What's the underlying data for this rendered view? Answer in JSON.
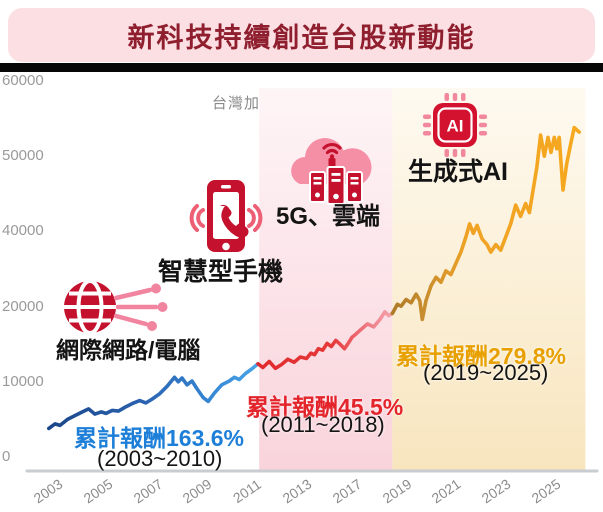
{
  "banner": {
    "title": "新科技持續創造台股新動能",
    "bg_color": "#FBDFE3",
    "title_color": "#8F1F2E"
  },
  "icons": {
    "internet": "globe-circuit-icon",
    "smartphone": "phone-vibrate-icon",
    "cloud": "cloud-servers-5g-icon",
    "ai": "ai-chip-icon"
  },
  "chart_data": {
    "type": "line",
    "title": "台灣加權總報酬指數走勢",
    "legend_position": "none",
    "grid": false,
    "annotations": {
      "internet": {
        "label": "網際網路/電腦"
      },
      "smartphone": {
        "label": "智慧型手機"
      },
      "cloud_5g": {
        "label": "5G、雲端"
      },
      "gen_ai": {
        "label": "生成式AI"
      }
    },
    "returns": [
      {
        "text": "累計報酬163.6%",
        "period": "(2003~2010)",
        "color": "#1E7FD8"
      },
      {
        "text": "累計報酬45.5%",
        "period": "(2011~2018)",
        "color": "#E3242B"
      },
      {
        "text": "累計報酬279.8%",
        "period": "(2019~2025)",
        "color": "#E8A000"
      }
    ],
    "axis": {
      "x_tick_years": [
        2003,
        2005,
        2007,
        2009,
        2011,
        2013,
        2017,
        2019,
        2021,
        2023,
        2025
      ],
      "x_tick_labels": [
        "2003",
        "2005",
        "2007",
        "2009",
        "2011",
        "2013",
        "2017",
        "2019",
        "2021",
        "2023",
        "2025"
      ],
      "x_origin": 60,
      "x_step": 49.8,
      "y_tick_values": [
        0,
        10000,
        20000,
        40000,
        50000,
        60000
      ],
      "y_tick_labels": [
        "0",
        "10000",
        "20000",
        "40000",
        "50000",
        "60000"
      ],
      "y_origin": 457,
      "y_step": 75.2
    },
    "bands": [
      {
        "name": "era-smartphone",
        "start": 2011,
        "end": 2018.35,
        "color_top": "#FEF5F7",
        "color_bottom": "#F9D3DB"
      },
      {
        "name": "era-generative-ai",
        "start": 2018.35,
        "end": 2026.1,
        "color_top": "#FEFAF1",
        "color_bottom": "#F8E5BE"
      }
    ],
    "series": [
      {
        "name": "internet-computer-era",
        "color_start": "#1B4689",
        "color_end": "#4AA5E8",
        "points": [
          [
            2002.55,
            3800
          ],
          [
            2002.8,
            4400
          ],
          [
            2003.0,
            4200
          ],
          [
            2003.3,
            5000
          ],
          [
            2003.6,
            5500
          ],
          [
            2003.9,
            6000
          ],
          [
            2004.15,
            6400
          ],
          [
            2004.4,
            5700
          ],
          [
            2004.65,
            6000
          ],
          [
            2004.85,
            5800
          ],
          [
            2005.1,
            6200
          ],
          [
            2005.35,
            6100
          ],
          [
            2005.6,
            6600
          ],
          [
            2005.9,
            7100
          ],
          [
            2006.2,
            7500
          ],
          [
            2006.45,
            7200
          ],
          [
            2006.7,
            7700
          ],
          [
            2007.0,
            8400
          ],
          [
            2007.3,
            9400
          ],
          [
            2007.6,
            10600
          ],
          [
            2007.75,
            10000
          ],
          [
            2007.9,
            10500
          ],
          [
            2008.1,
            9600
          ],
          [
            2008.3,
            10100
          ],
          [
            2008.5,
            9100
          ],
          [
            2008.75,
            7900
          ],
          [
            2008.95,
            7400
          ],
          [
            2009.2,
            8500
          ],
          [
            2009.5,
            9600
          ],
          [
            2009.8,
            10100
          ],
          [
            2010.0,
            10600
          ],
          [
            2010.2,
            10300
          ],
          [
            2010.45,
            11100
          ],
          [
            2010.7,
            11700
          ],
          [
            2010.95,
            12400
          ]
        ]
      },
      {
        "name": "smartphone-era",
        "color_start": "#E02A2E",
        "color_end": "#F5A3AC",
        "points": [
          [
            2010.95,
            12400
          ],
          [
            2011.15,
            11900
          ],
          [
            2011.4,
            12700
          ],
          [
            2011.65,
            11800
          ],
          [
            2011.9,
            12300
          ],
          [
            2012.15,
            13000
          ],
          [
            2012.4,
            12600
          ],
          [
            2012.65,
            13300
          ],
          [
            2012.9,
            13100
          ],
          [
            2013.15,
            13800
          ],
          [
            2013.45,
            13600
          ],
          [
            2013.75,
            14400
          ],
          [
            2014.1,
            14200
          ],
          [
            2014.45,
            15100
          ],
          [
            2014.8,
            14700
          ],
          [
            2015.15,
            15500
          ],
          [
            2015.5,
            15000
          ],
          [
            2015.85,
            14400
          ],
          [
            2016.15,
            15100
          ],
          [
            2016.45,
            15900
          ],
          [
            2016.8,
            16400
          ],
          [
            2017.1,
            17000
          ],
          [
            2017.35,
            17700
          ],
          [
            2017.6,
            17300
          ],
          [
            2017.85,
            18300
          ],
          [
            2018.05,
            19300
          ],
          [
            2018.2,
            18800
          ],
          [
            2018.35,
            19100
          ]
        ]
      },
      {
        "name": "generative-ai-era",
        "color_start": "#AE7A28",
        "color_end": "#F6A81E",
        "points": [
          [
            2018.35,
            19100
          ],
          [
            2018.55,
            20600
          ],
          [
            2018.7,
            20100
          ],
          [
            2018.9,
            21900
          ],
          [
            2019.1,
            21000
          ],
          [
            2019.3,
            23300
          ],
          [
            2019.45,
            21600
          ],
          [
            2019.55,
            18300
          ],
          [
            2019.7,
            21600
          ],
          [
            2019.9,
            25500
          ],
          [
            2020.1,
            27800
          ],
          [
            2020.3,
            26500
          ],
          [
            2020.5,
            29500
          ],
          [
            2020.7,
            28500
          ],
          [
            2020.9,
            31500
          ],
          [
            2021.1,
            34500
          ],
          [
            2021.3,
            38500
          ],
          [
            2021.45,
            41000
          ],
          [
            2021.6,
            39500
          ],
          [
            2021.75,
            40800
          ],
          [
            2021.95,
            38000
          ],
          [
            2022.15,
            36500
          ],
          [
            2022.3,
            34500
          ],
          [
            2022.5,
            36500
          ],
          [
            2022.7,
            35000
          ],
          [
            2022.9,
            38500
          ],
          [
            2023.1,
            41000
          ],
          [
            2023.3,
            43500
          ],
          [
            2023.5,
            42000
          ],
          [
            2023.7,
            43700
          ],
          [
            2023.85,
            42500
          ],
          [
            2024.0,
            45500
          ],
          [
            2024.15,
            48500
          ],
          [
            2024.3,
            52800
          ],
          [
            2024.45,
            50000
          ],
          [
            2024.6,
            52500
          ],
          [
            2024.72,
            50500
          ],
          [
            2024.85,
            52500
          ],
          [
            2024.95,
            51000
          ],
          [
            2025.05,
            52500
          ],
          [
            2025.2,
            45500
          ],
          [
            2025.35,
            49000
          ],
          [
            2025.5,
            51500
          ],
          [
            2025.65,
            53800
          ],
          [
            2025.85,
            53200
          ]
        ]
      }
    ]
  }
}
